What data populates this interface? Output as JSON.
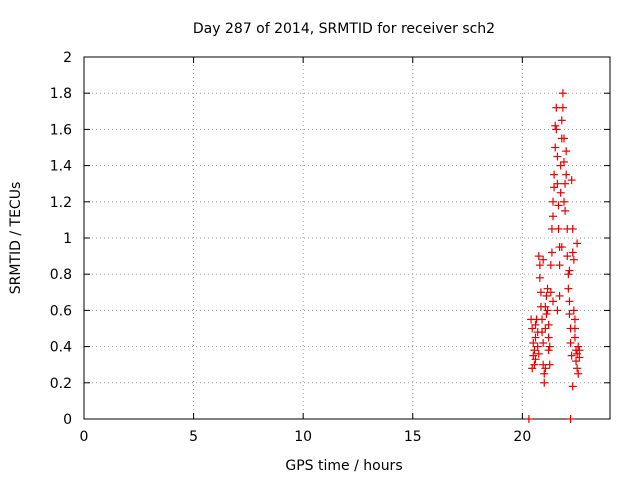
{
  "colors": {
    "points": "#e60000",
    "grid": "#a0a0a0",
    "axis": "#000000"
  },
  "chart_data": {
    "type": "scatter",
    "title": "Day 287 of 2014, SRMTID for receiver sch2",
    "xlabel": "GPS time / hours",
    "ylabel": "SRMTID / TECUs",
    "xlim": [
      0,
      24
    ],
    "ylim": [
      0,
      2
    ],
    "xticks": [
      0,
      5,
      10,
      15,
      20
    ],
    "xtick_labels": [
      "0",
      "5",
      "10",
      "15",
      "20"
    ],
    "yticks": [
      0,
      0.2,
      0.4,
      0.6,
      0.8,
      1,
      1.2,
      1.4,
      1.6,
      1.8,
      2
    ],
    "ytick_labels": [
      "0",
      "0.2",
      "0.4",
      "0.6",
      "0.8",
      "1",
      "1.2",
      "1.4",
      "1.6",
      "1.8",
      "2"
    ],
    "grid": true,
    "marker": "+",
    "series": [
      {
        "name": "sch2",
        "points": [
          [
            20.3,
            0.0
          ],
          [
            22.2,
            0.0
          ],
          [
            20.4,
            0.55
          ],
          [
            20.45,
            0.5
          ],
          [
            20.5,
            0.42
          ],
          [
            20.5,
            0.35
          ],
          [
            20.55,
            0.3
          ],
          [
            20.45,
            0.28
          ],
          [
            20.55,
            0.38
          ],
          [
            20.6,
            0.52
          ],
          [
            20.6,
            0.45
          ],
          [
            20.65,
            0.55
          ],
          [
            20.7,
            0.48
          ],
          [
            20.7,
            0.4
          ],
          [
            20.75,
            0.36
          ],
          [
            20.75,
            0.9
          ],
          [
            20.8,
            0.85
          ],
          [
            20.8,
            0.78
          ],
          [
            20.85,
            0.7
          ],
          [
            20.85,
            0.62
          ],
          [
            20.9,
            0.55
          ],
          [
            20.9,
            0.48
          ],
          [
            20.95,
            0.42
          ],
          [
            20.95,
            0.3
          ],
          [
            21.0,
            0.25
          ],
          [
            21.0,
            0.2
          ],
          [
            21.05,
            0.28
          ],
          [
            21.05,
            0.5
          ],
          [
            21.1,
            0.58
          ],
          [
            21.1,
            0.68
          ],
          [
            21.15,
            0.72
          ],
          [
            21.15,
            0.6
          ],
          [
            21.2,
            0.52
          ],
          [
            21.2,
            0.45
          ],
          [
            21.25,
            0.4
          ],
          [
            21.25,
            0.3
          ],
          [
            21.3,
            0.7
          ],
          [
            21.3,
            0.85
          ],
          [
            21.35,
            0.92
          ],
          [
            21.35,
            1.05
          ],
          [
            21.4,
            1.12
          ],
          [
            21.4,
            1.2
          ],
          [
            21.45,
            1.28
          ],
          [
            21.45,
            1.35
          ],
          [
            21.5,
            1.5
          ],
          [
            21.5,
            1.62
          ],
          [
            21.55,
            1.72
          ],
          [
            21.55,
            1.6
          ],
          [
            21.6,
            1.45
          ],
          [
            21.6,
            1.3
          ],
          [
            21.65,
            1.18
          ],
          [
            21.65,
            1.05
          ],
          [
            21.7,
            0.95
          ],
          [
            21.7,
            0.85
          ],
          [
            21.75,
            1.25
          ],
          [
            21.75,
            1.4
          ],
          [
            21.8,
            1.55
          ],
          [
            21.8,
            1.65
          ],
          [
            21.85,
            1.8
          ],
          [
            21.85,
            1.72
          ],
          [
            21.9,
            1.55
          ],
          [
            21.9,
            1.42
          ],
          [
            21.95,
            1.3
          ],
          [
            21.95,
            1.15
          ],
          [
            22.0,
            1.48
          ],
          [
            22.0,
            1.35
          ],
          [
            22.05,
            1.05
          ],
          [
            22.05,
            0.9
          ],
          [
            22.1,
            0.8
          ],
          [
            22.1,
            0.72
          ],
          [
            22.15,
            0.65
          ],
          [
            22.15,
            0.58
          ],
          [
            22.2,
            0.5
          ],
          [
            22.2,
            0.42
          ],
          [
            22.25,
            0.35
          ],
          [
            22.25,
            1.32
          ],
          [
            22.3,
            1.05
          ],
          [
            22.3,
            0.92
          ],
          [
            22.35,
            0.88
          ],
          [
            22.35,
            0.6
          ],
          [
            22.4,
            0.55
          ],
          [
            22.4,
            0.45
          ],
          [
            22.45,
            0.38
          ],
          [
            22.45,
            0.32
          ],
          [
            22.5,
            0.28
          ],
          [
            22.5,
            0.36
          ],
          [
            22.55,
            0.4
          ],
          [
            22.55,
            0.25
          ],
          [
            22.3,
            0.18
          ],
          [
            22.6,
            0.34
          ],
          [
            22.6,
            0.38
          ],
          [
            22.5,
            0.97
          ],
          [
            21.6,
            0.6
          ],
          [
            21.8,
            0.95
          ],
          [
            21.9,
            1.2
          ],
          [
            21.4,
            0.65
          ],
          [
            20.95,
            0.88
          ],
          [
            21.05,
            0.62
          ],
          [
            21.7,
            0.68
          ],
          [
            22.15,
            0.82
          ],
          [
            20.6,
            0.33
          ],
          [
            21.2,
            0.38
          ],
          [
            22.4,
            0.5
          ]
        ]
      }
    ]
  }
}
